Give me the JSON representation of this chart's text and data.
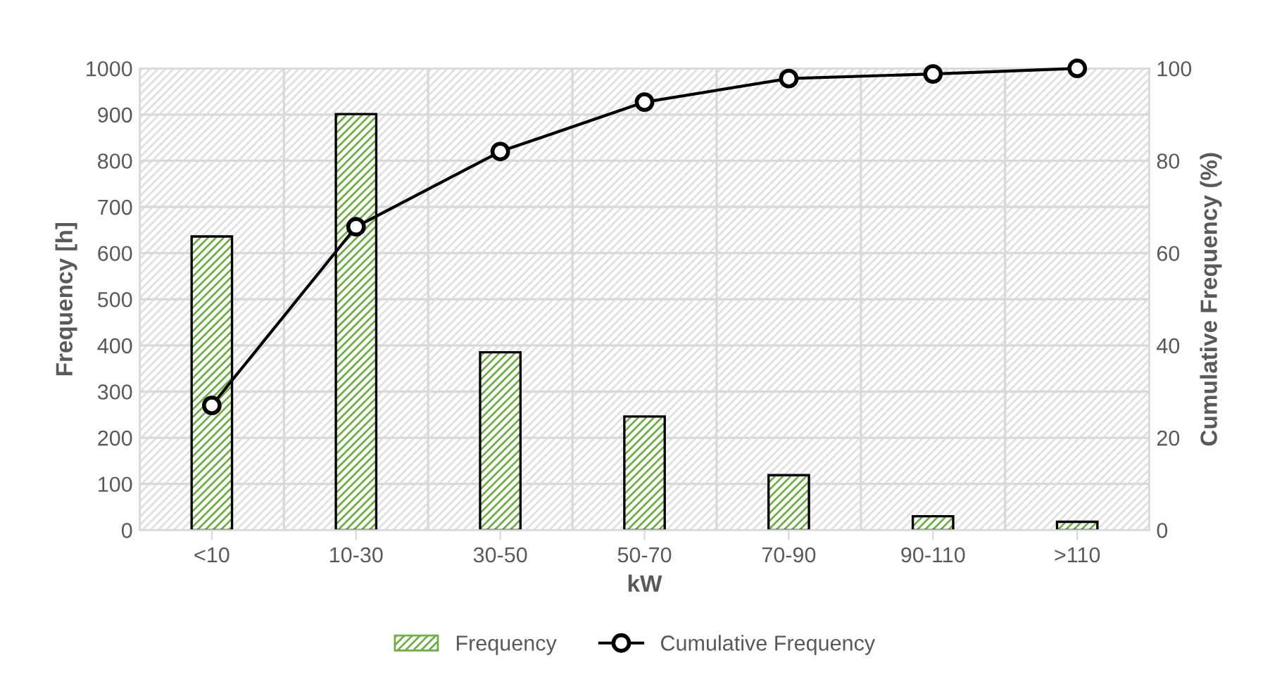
{
  "chart_data": {
    "type": "bar",
    "xlabel": "kW",
    "ylabel": "Frequency [h]",
    "y2label": "Cumulative Frequency (%)",
    "categories": [
      "<10",
      "10-30",
      "30-50",
      "50-70",
      "70-90",
      "90-110",
      ">110"
    ],
    "series": [
      {
        "name": "Frequency",
        "color": "#70ad47",
        "values": [
          636,
          901,
          385,
          246,
          119,
          30,
          18
        ]
      },
      {
        "name": "Cumulative Frequency",
        "type": "line",
        "axis": "y2",
        "color": "#000000",
        "marker": "circle",
        "values": [
          27,
          65.7,
          82,
          92.7,
          97.8,
          98.8,
          100
        ]
      }
    ],
    "ylim": [
      0,
      1000
    ],
    "yticks": [
      0,
      100,
      200,
      300,
      400,
      500,
      600,
      700,
      800,
      900,
      1000
    ],
    "y2lim": [
      0,
      100
    ],
    "y2ticks": [
      0,
      20,
      40,
      60,
      80,
      100
    ],
    "grid": true,
    "legend": "bottom"
  }
}
